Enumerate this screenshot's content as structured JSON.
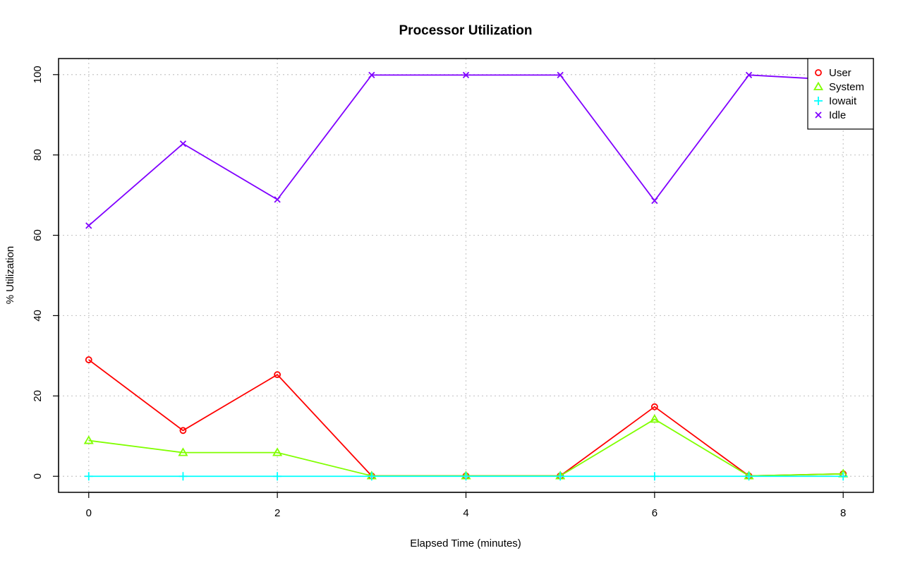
{
  "chart_data": {
    "type": "line",
    "title": "Processor Utilization",
    "xlabel": "Elapsed Time (minutes)",
    "ylabel": "% Utilization",
    "x": [
      0,
      1,
      2,
      3,
      4,
      5,
      6,
      7,
      8
    ],
    "xlim": [
      -0.32,
      8.32
    ],
    "ylim": [
      -4,
      104
    ],
    "xticks": [
      0,
      2,
      4,
      6,
      8
    ],
    "yticks": [
      0,
      20,
      40,
      60,
      80,
      100
    ],
    "grid": true,
    "legend_position": "top-right",
    "series": [
      {
        "name": "User",
        "color": "#ff0000",
        "marker": "circle",
        "values": [
          29.0,
          11.4,
          25.3,
          0.1,
          0.1,
          0.1,
          17.3,
          0.1,
          0.6
        ]
      },
      {
        "name": "System",
        "color": "#80ff00",
        "marker": "triangle",
        "values": [
          8.9,
          5.9,
          5.9,
          0.1,
          0.1,
          0.1,
          14.2,
          0.1,
          0.6
        ]
      },
      {
        "name": "Iowait",
        "color": "#00ffff",
        "marker": "plus",
        "values": [
          0,
          0,
          0,
          0,
          0,
          0,
          0,
          0,
          0
        ]
      },
      {
        "name": "Idle",
        "color": "#8000ff",
        "marker": "cross",
        "values": [
          62.4,
          82.8,
          68.9,
          99.9,
          99.9,
          99.9,
          68.6,
          99.9,
          98.6
        ]
      }
    ]
  }
}
